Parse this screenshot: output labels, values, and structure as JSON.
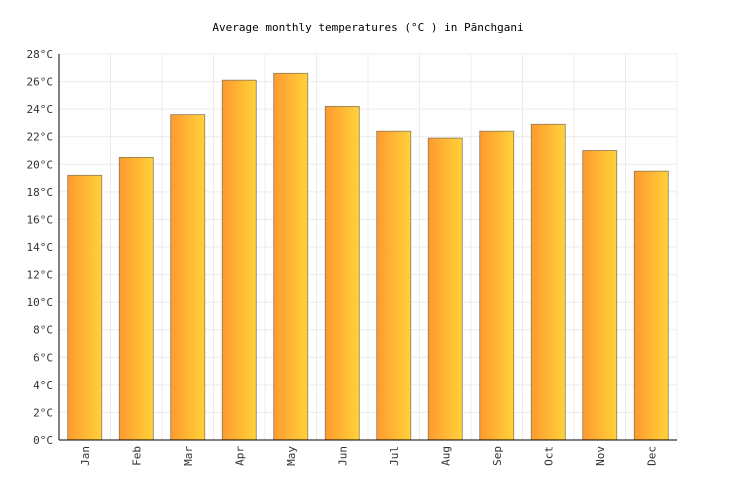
{
  "chart_data": {
    "type": "bar",
    "title": "Average monthly temperatures (°C ) in Pānchgani",
    "xlabel": "",
    "ylabel": "",
    "categories": [
      "Jan",
      "Feb",
      "Mar",
      "Apr",
      "May",
      "Jun",
      "Jul",
      "Aug",
      "Sep",
      "Oct",
      "Nov",
      "Dec"
    ],
    "values": [
      19.2,
      20.5,
      23.6,
      26.1,
      26.6,
      24.2,
      22.4,
      21.9,
      22.4,
      22.9,
      21.0,
      19.5
    ],
    "ylim": [
      0,
      28
    ],
    "yticks": [
      "0°C",
      "2°C",
      "4°C",
      "6°C",
      "8°C",
      "10°C",
      "12°C",
      "14°C",
      "16°C",
      "18°C",
      "20°C",
      "22°C",
      "24°C",
      "26°C",
      "28°C"
    ],
    "grid": true,
    "legend": "none",
    "colors": {
      "bar_start": "#ff9a2e",
      "bar_end": "#ffd23a"
    }
  }
}
